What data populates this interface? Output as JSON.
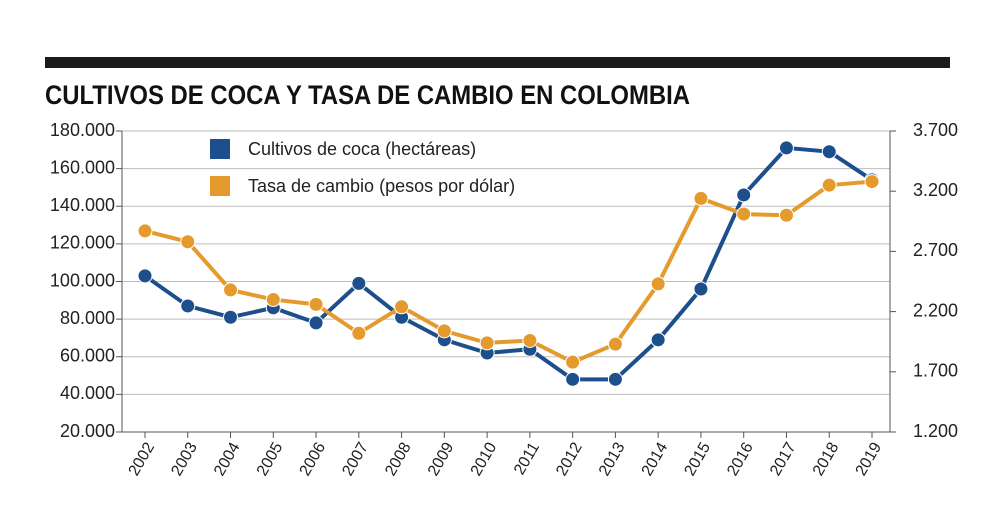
{
  "chart_data": {
    "type": "line",
    "title": "CULTIVOS DE COCA Y TASA DE CAMBIO EN COLOMBIA",
    "categories": [
      "2002",
      "2003",
      "2004",
      "2005",
      "2006",
      "2007",
      "2008",
      "2009",
      "2010",
      "2011",
      "2012",
      "2013",
      "2014",
      "2015",
      "2016",
      "2017",
      "2018",
      "2019"
    ],
    "series": [
      {
        "name": "Cultivos de coca (hectáreas)",
        "color": "#1d4f8d",
        "values": [
          103000,
          87000,
          81000,
          86000,
          78000,
          99000,
          81000,
          69000,
          62000,
          64000,
          48000,
          48000,
          69000,
          96000,
          146000,
          171000,
          169000,
          154000
        ]
      },
      {
        "name": "Tasa de cambio (pesos por dólar)",
        "color": "#e49a2c",
        "axis": "y2",
        "values": [
          2870,
          2780,
          2380,
          2300,
          2260,
          2020,
          2240,
          2040,
          1940,
          1960,
          1780,
          1930,
          2430,
          3140,
          3010,
          3000,
          3250,
          3280
        ]
      }
    ],
    "ylim": [
      20000,
      180000
    ],
    "yticks": [
      {
        "value": 20000,
        "label": "20.000"
      },
      {
        "value": 40000,
        "label": "40.000"
      },
      {
        "value": 60000,
        "label": "60.000"
      },
      {
        "value": 80000,
        "label": "80.000"
      },
      {
        "value": 100000,
        "label": "100.000"
      },
      {
        "value": 120000,
        "label": "120.000"
      },
      {
        "value": 140000,
        "label": "140.000"
      },
      {
        "value": 160000,
        "label": "160.000"
      },
      {
        "value": 180000,
        "label": "180.000"
      }
    ],
    "y2lim": [
      1200,
      3700
    ],
    "y2ticks": [
      {
        "value": 1200,
        "label": "1.200"
      },
      {
        "value": 1700,
        "label": "1.700"
      },
      {
        "value": 2200,
        "label": "2.200"
      },
      {
        "value": 2700,
        "label": "2.700"
      },
      {
        "value": 3200,
        "label": "3.200"
      },
      {
        "value": 3700,
        "label": "3.700"
      }
    ],
    "grid": true
  }
}
